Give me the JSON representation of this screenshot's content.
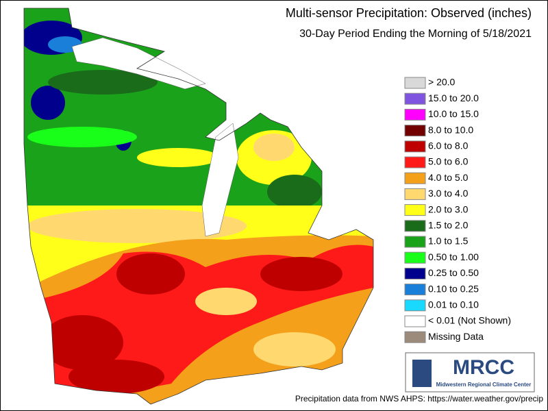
{
  "header": {
    "title": "Multi-sensor Precipitation: Observed (inches)",
    "subtitle": "30-Day Period Ending the Morning of 5/18/2021"
  },
  "legend": [
    {
      "label": "> 20.0",
      "color": "#d9d9d9"
    },
    {
      "label": "15.0 to 20.0",
      "color": "#7f55e0"
    },
    {
      "label": "10.0 to 15.0",
      "color": "#ff00ff"
    },
    {
      "label": "8.0 to 10.0",
      "color": "#730000"
    },
    {
      "label": "6.0 to 8.0",
      "color": "#bf0000"
    },
    {
      "label": "5.0 to 6.0",
      "color": "#ff1a1a"
    },
    {
      "label": "4.0 to 5.0",
      "color": "#f5a01a"
    },
    {
      "label": "3.0 to 4.0",
      "color": "#ffd970"
    },
    {
      "label": "2.0 to 3.0",
      "color": "#ffff1a"
    },
    {
      "label": "1.5 to 2.0",
      "color": "#1a6b1a"
    },
    {
      "label": "1.0 to 1.5",
      "color": "#1aa31a"
    },
    {
      "label": "0.50 to 1.00",
      "color": "#1aff1a"
    },
    {
      "label": "0.25 to 0.50",
      "color": "#00008c"
    },
    {
      "label": "0.10 to 0.25",
      "color": "#1a7fd9"
    },
    {
      "label": "0.01 to 0.10",
      "color": "#1ad9ff"
    },
    {
      "label": "< 0.01 (Not Shown)",
      "color": "#ffffff"
    },
    {
      "label": "Missing Data",
      "color": "#9c8a7a"
    }
  ],
  "logo": {
    "name": "MRCC",
    "full_name": "Midwestern Regional Climate Center"
  },
  "credit": "Precipitation data from NWS AHPS: https://water.weather.gov/precip"
}
